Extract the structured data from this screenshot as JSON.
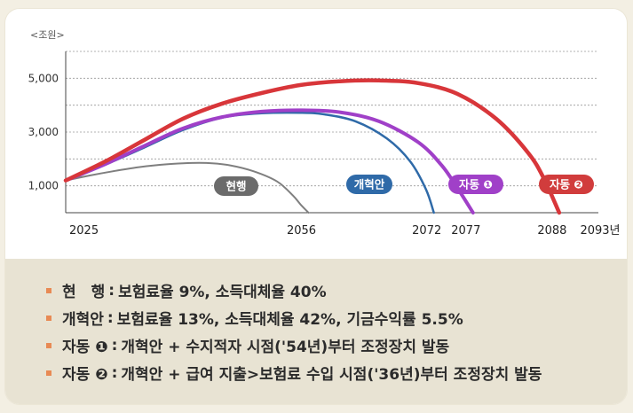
{
  "chart_data": {
    "type": "line",
    "y_unit_label": "<조원>",
    "y_ticks": [
      "1,000",
      "3,000",
      "5,000"
    ],
    "y_tick_values": [
      1000,
      3000,
      5000
    ],
    "x_ticks": [
      "2025",
      "2056",
      "2072",
      "2077",
      "2088",
      "2093년"
    ],
    "x_tick_values": [
      2025,
      2056,
      2072,
      2077,
      2088,
      2093
    ],
    "xlim": [
      2025,
      2093
    ],
    "ylim": [
      0,
      6000
    ],
    "grid": "horizontal dashed",
    "series": [
      {
        "name": "현행",
        "color": "#7f7f7f",
        "badge_color": "#6b6b6b",
        "points": [
          [
            2025,
            1200
          ],
          [
            2028,
            1380
          ],
          [
            2031,
            1540
          ],
          [
            2034,
            1680
          ],
          [
            2037,
            1780
          ],
          [
            2040,
            1840
          ],
          [
            2043,
            1850
          ],
          [
            2046,
            1760
          ],
          [
            2049,
            1540
          ],
          [
            2052,
            1160
          ],
          [
            2054,
            640
          ],
          [
            2055,
            300
          ],
          [
            2056,
            0
          ]
        ]
      },
      {
        "name": "개혁안",
        "color": "#2f6aa8",
        "badge_color": "#2f6aa8",
        "points": [
          [
            2025,
            1200
          ],
          [
            2030,
            1780
          ],
          [
            2035,
            2420
          ],
          [
            2040,
            3080
          ],
          [
            2045,
            3540
          ],
          [
            2050,
            3700
          ],
          [
            2055,
            3720
          ],
          [
            2058,
            3660
          ],
          [
            2062,
            3400
          ],
          [
            2066,
            2760
          ],
          [
            2069,
            1900
          ],
          [
            2071,
            860
          ],
          [
            2072,
            0
          ]
        ]
      },
      {
        "name": "자동 ❶",
        "color": "#a040c8",
        "badge_color": "#a040c8",
        "points": [
          [
            2025,
            1200
          ],
          [
            2030,
            1800
          ],
          [
            2035,
            2480
          ],
          [
            2040,
            3140
          ],
          [
            2045,
            3560
          ],
          [
            2050,
            3760
          ],
          [
            2055,
            3810
          ],
          [
            2060,
            3740
          ],
          [
            2065,
            3400
          ],
          [
            2070,
            2620
          ],
          [
            2073,
            1760
          ],
          [
            2075,
            920
          ],
          [
            2077,
            0
          ]
        ]
      },
      {
        "name": "자동 ❷",
        "color": "#d8363a",
        "badge_color": "#d13c3c",
        "points": [
          [
            2025,
            1200
          ],
          [
            2030,
            1900
          ],
          [
            2035,
            2700
          ],
          [
            2040,
            3500
          ],
          [
            2045,
            4060
          ],
          [
            2050,
            4450
          ],
          [
            2055,
            4750
          ],
          [
            2060,
            4890
          ],
          [
            2065,
            4920
          ],
          [
            2070,
            4820
          ],
          [
            2075,
            4420
          ],
          [
            2080,
            3480
          ],
          [
            2084,
            2240
          ],
          [
            2086,
            1300
          ],
          [
            2088,
            0
          ]
        ]
      }
    ]
  },
  "legend": [
    {
      "name": "현　행",
      "sep": ":",
      "desc": "보험료율 9%, 소득대체율 40%"
    },
    {
      "name": "개혁안",
      "sep": ":",
      "desc": "보험료율 13%, 소득대체율 42%, 기금수익률 5.5%"
    },
    {
      "name": "자동 ❶",
      "sep": ":",
      "desc": "개혁안 + 수지적자 시점('54년)부터 조정장치 발동"
    },
    {
      "name": "자동 ❷",
      "sep": ":",
      "desc": "개혁안 + 급여 지출>보험료 수입 시점('36년)부터 조정장치 발동"
    }
  ]
}
